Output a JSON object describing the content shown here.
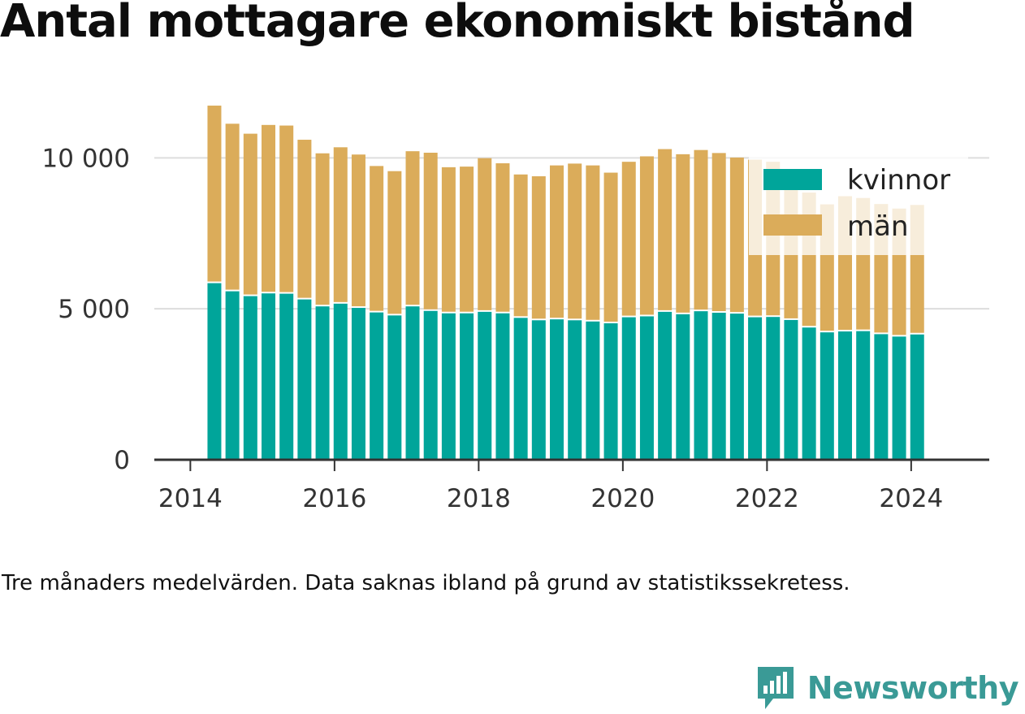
{
  "title": "Antal mottagare ekonomiskt bistånd",
  "footnote": "Tre månaders medelvärden. Data saknas ibland på grund av statistikssekretess.",
  "brand": {
    "name": "Newsworthy"
  },
  "colors": {
    "kvinnor": "#00a59a",
    "man": "#dbac5a",
    "grid": "#dddddd",
    "axis": "#333333"
  },
  "chart_data": {
    "type": "bar",
    "stacked": true,
    "x": [
      "2014-05",
      "2014-08",
      "2014-11",
      "2015-02",
      "2015-05",
      "2015-08",
      "2015-11",
      "2016-02",
      "2016-05",
      "2016-08",
      "2016-11",
      "2017-02",
      "2017-05",
      "2017-08",
      "2017-11",
      "2018-02",
      "2018-05",
      "2018-08",
      "2018-11",
      "2019-02",
      "2019-05",
      "2019-08",
      "2019-11",
      "2020-02",
      "2020-05",
      "2020-08",
      "2020-11",
      "2021-02",
      "2021-05",
      "2021-08",
      "2021-11",
      "2022-02",
      "2022-05",
      "2022-08",
      "2022-11",
      "2023-02",
      "2023-05",
      "2023-08",
      "2023-11",
      "2024-02"
    ],
    "series": [
      {
        "name": "kvinnor",
        "values": [
          5850,
          5580,
          5420,
          5510,
          5500,
          5310,
          5080,
          5170,
          5030,
          4880,
          4780,
          5080,
          4930,
          4850,
          4850,
          4900,
          4850,
          4700,
          4620,
          4650,
          4620,
          4580,
          4520,
          4720,
          4750,
          4900,
          4820,
          4920,
          4870,
          4840,
          4720,
          4730,
          4630,
          4380,
          4220,
          4250,
          4260,
          4160,
          4080,
          4150
        ]
      },
      {
        "name": "män",
        "values": [
          5880,
          5550,
          5380,
          5580,
          5570,
          5290,
          5070,
          5180,
          5080,
          4850,
          4780,
          5140,
          5240,
          4840,
          4860,
          5090,
          4970,
          4750,
          4770,
          5100,
          5190,
          5170,
          4990,
          5150,
          5300,
          5390,
          5300,
          5340,
          5290,
          5170,
          5220,
          5140,
          4900,
          4470,
          4240,
          4480,
          4410,
          4310,
          4240,
          4290
        ]
      }
    ],
    "y_ticks": [
      {
        "value": 0,
        "label": "0"
      },
      {
        "value": 5000,
        "label": "5 000"
      },
      {
        "value": 10000,
        "label": "10 000"
      }
    ],
    "x_ticks": [
      {
        "value": "2014-01",
        "label": "2014"
      },
      {
        "value": "2016-01",
        "label": "2016"
      },
      {
        "value": "2018-01",
        "label": "2018"
      },
      {
        "value": "2020-01",
        "label": "2020"
      },
      {
        "value": "2022-01",
        "label": "2022"
      },
      {
        "value": "2024-01",
        "label": "2024"
      }
    ],
    "ylim": [
      0,
      12000
    ],
    "xlim": [
      "2013-07",
      "2025-02"
    ],
    "grid": true,
    "legend_position": "top-right"
  }
}
